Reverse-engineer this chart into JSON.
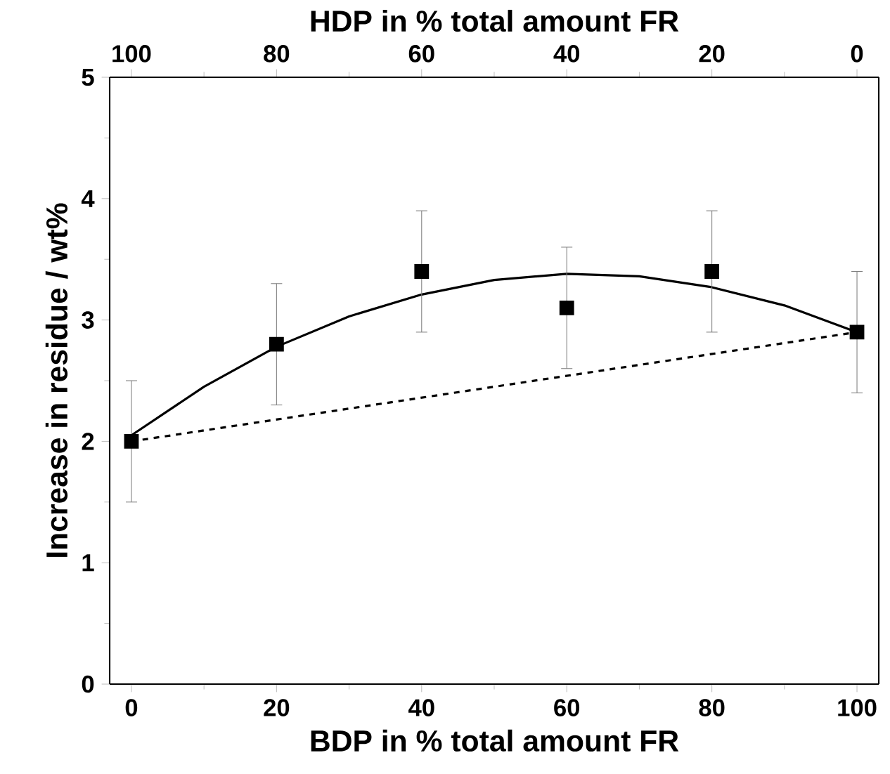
{
  "chart_data": {
    "type": "scatter",
    "xlabel": "BDP in % total amount FR",
    "ylabel": "Increase in residue / wt%",
    "x2label": "HDP in % total amount FR",
    "xlim": [
      -3,
      103
    ],
    "xticks": [
      0,
      20,
      40,
      60,
      80,
      100
    ],
    "x2lim": [
      103,
      -3
    ],
    "x2ticks": [
      100,
      80,
      60,
      40,
      20,
      0
    ],
    "ylim": [
      0,
      5
    ],
    "yticks": [
      0,
      1,
      2,
      3,
      4,
      5
    ],
    "series": [
      {
        "type": "line",
        "color": "#000000",
        "line_style": "solid",
        "marker": "none",
        "x": [
          0,
          10,
          20,
          30,
          40,
          50,
          60,
          70,
          80,
          90,
          100
        ],
        "values": [
          2.05,
          2.45,
          2.78,
          3.03,
          3.21,
          3.33,
          3.38,
          3.36,
          3.27,
          3.12,
          2.9
        ]
      },
      {
        "type": "line",
        "color": "#000000",
        "line_style": "dashed",
        "marker": "none",
        "x": [
          0,
          100
        ],
        "values": [
          2.0,
          2.9
        ]
      },
      {
        "color": "#000000",
        "marker": "square",
        "x": [
          0,
          20,
          40,
          60,
          80,
          100
        ],
        "values": [
          2.0,
          2.8,
          3.4,
          3.1,
          3.4,
          2.9
        ],
        "errors": [
          0.5,
          0.5,
          0.5,
          0.5,
          0.5,
          0.5
        ]
      }
    ]
  }
}
